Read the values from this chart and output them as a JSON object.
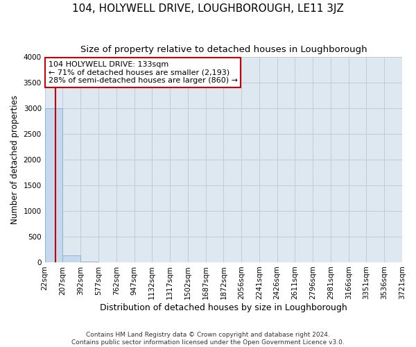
{
  "title": "104, HOLYWELL DRIVE, LOUGHBOROUGH, LE11 3JZ",
  "subtitle": "Size of property relative to detached houses in Loughborough",
  "xlabel": "Distribution of detached houses by size in Loughborough",
  "ylabel": "Number of detached properties",
  "footer_line1": "Contains HM Land Registry data © Crown copyright and database right 2024.",
  "footer_line2": "Contains public sector information licensed under the Open Government Licence v3.0.",
  "bins": [
    22,
    207,
    392,
    577,
    762,
    947,
    1132,
    1317,
    1502,
    1687,
    1872,
    2056,
    2241,
    2426,
    2611,
    2796,
    2981,
    3166,
    3351,
    3536,
    3721
  ],
  "bar_heights": [
    3000,
    130,
    5,
    2,
    1,
    1,
    0,
    0,
    0,
    0,
    0,
    0,
    0,
    0,
    0,
    0,
    0,
    0,
    0,
    0
  ],
  "bar_color": "#c5d8ed",
  "bar_edge_color": "#8ab4d4",
  "ylim": [
    0,
    4000
  ],
  "yticks": [
    0,
    500,
    1000,
    1500,
    2000,
    2500,
    3000,
    3500,
    4000
  ],
  "property_size": 133,
  "property_line_color": "#cc0000",
  "annotation_line1": "104 HOLYWELL DRIVE: 133sqm",
  "annotation_line2": "← 71% of detached houses are smaller (2,193)",
  "annotation_line3": "28% of semi-detached houses are larger (860) →",
  "annotation_box_color": "#ffffff",
  "annotation_box_edge_color": "#cc0000",
  "bg_color": "#dde8f0",
  "grid_color": "#c0cdd8",
  "fig_bg_color": "#ffffff",
  "title_fontsize": 11,
  "subtitle_fontsize": 9.5,
  "axis_label_fontsize": 9,
  "tick_fontsize": 7.5,
  "annotation_fontsize": 8,
  "ylabel_fontsize": 8.5
}
